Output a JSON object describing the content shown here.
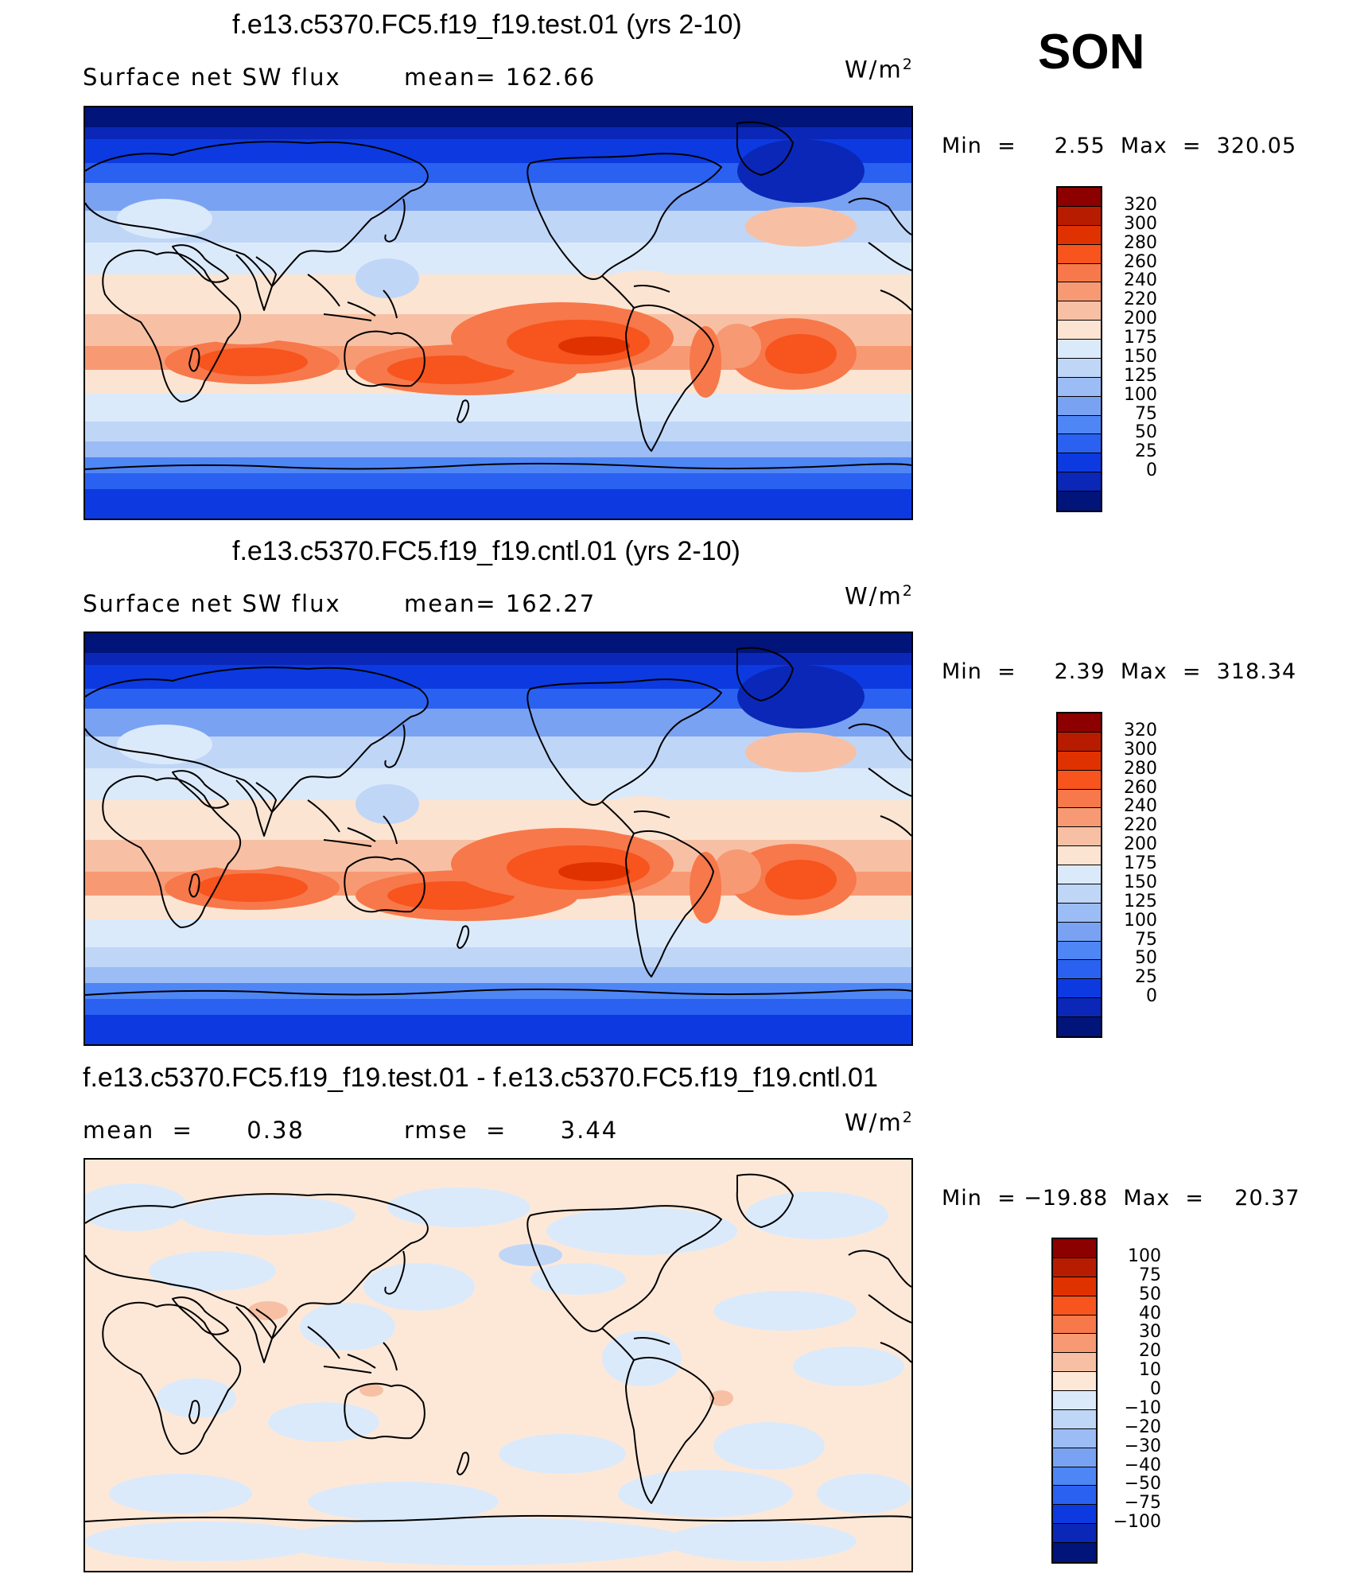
{
  "season": "SON",
  "units_base": "W/m",
  "units_exp": "2",
  "panels": [
    {
      "title": "f.e13.c5370.FC5.f19_f19.test.01 (yrs 2-10)",
      "left_label": "Surface net SW flux",
      "right_label": "mean=  162.66",
      "min_max": "Min  =     2.55  Max  =  320.05",
      "kind": "field"
    },
    {
      "title": "f.e13.c5370.FC5.f19_f19.cntl.01 (yrs 2-10)",
      "left_label": "Surface net SW flux",
      "right_label": "mean=  162.27",
      "min_max": "Min  =     2.39  Max  =  318.34",
      "kind": "field"
    },
    {
      "title": "f.e13.c5370.FC5.f19_f19.test.01 - f.e13.c5370.FC5.f19_f19.cntl.01",
      "left_label": "mean  =      0.38",
      "right_label": "rmse  =      3.44",
      "min_max": "Min  = −19.88  Max  =    20.37",
      "kind": "diff"
    }
  ],
  "chart_data": [
    {
      "type": "heatmap",
      "title": "f.e13.c5370.FC5.f19_f19.test.01 (yrs 2-10)",
      "variable": "Surface net SW flux",
      "units": "W/m2",
      "mean": 162.66,
      "min": 2.55,
      "max": 320.05,
      "colorbar_levels": [
        "320",
        "300",
        "280",
        "260",
        "240",
        "220",
        "200",
        "175",
        "150",
        "125",
        "100",
        "75",
        "50",
        "25",
        "0"
      ],
      "colorbar_colors": [
        "#8c0000",
        "#b81c00",
        "#e03200",
        "#f7541e",
        "#f7784a",
        "#f79a74",
        "#f7c0a4",
        "#fbe4d2",
        "#dbeafb",
        "#bfd6f7",
        "#9bbcf4",
        "#7aa2f2",
        "#4f86f5",
        "#2a61f0",
        "#0c3ae0",
        "#0a27b8",
        "#00147a"
      ]
    },
    {
      "type": "heatmap",
      "title": "f.e13.c5370.FC5.f19_f19.cntl.01 (yrs 2-10)",
      "variable": "Surface net SW flux",
      "units": "W/m2",
      "mean": 162.27,
      "min": 2.39,
      "max": 318.34,
      "colorbar_levels": [
        "320",
        "300",
        "280",
        "260",
        "240",
        "220",
        "200",
        "175",
        "150",
        "125",
        "100",
        "75",
        "50",
        "25",
        "0"
      ],
      "colorbar_colors": [
        "#8c0000",
        "#b81c00",
        "#e03200",
        "#f7541e",
        "#f7784a",
        "#f79a74",
        "#f7c0a4",
        "#fbe4d2",
        "#dbeafb",
        "#bfd6f7",
        "#9bbcf4",
        "#7aa2f2",
        "#4f86f5",
        "#2a61f0",
        "#0c3ae0",
        "#0a27b8",
        "#00147a"
      ]
    },
    {
      "type": "heatmap",
      "title": "f.e13.c5370.FC5.f19_f19.test.01 - f.e13.c5370.FC5.f19_f19.cntl.01",
      "variable": "Surface net SW flux difference",
      "units": "W/m2",
      "mean": 0.38,
      "rmse": 3.44,
      "min": -19.88,
      "max": 20.37,
      "colorbar_levels": [
        "100",
        "75",
        "50",
        "40",
        "30",
        "20",
        "10",
        "0",
        "−10",
        "−20",
        "−30",
        "−40",
        "−50",
        "−75",
        "−100"
      ],
      "colorbar_colors": [
        "#8c0000",
        "#b81c00",
        "#e03200",
        "#f7541e",
        "#f7784a",
        "#f79a74",
        "#f7c0a4",
        "#fde8d8",
        "#dbeafb",
        "#bfd6f7",
        "#9bbcf4",
        "#7aa2f2",
        "#4f86f5",
        "#2a61f0",
        "#0c3ae0",
        "#0a27b8",
        "#00147a"
      ]
    }
  ]
}
